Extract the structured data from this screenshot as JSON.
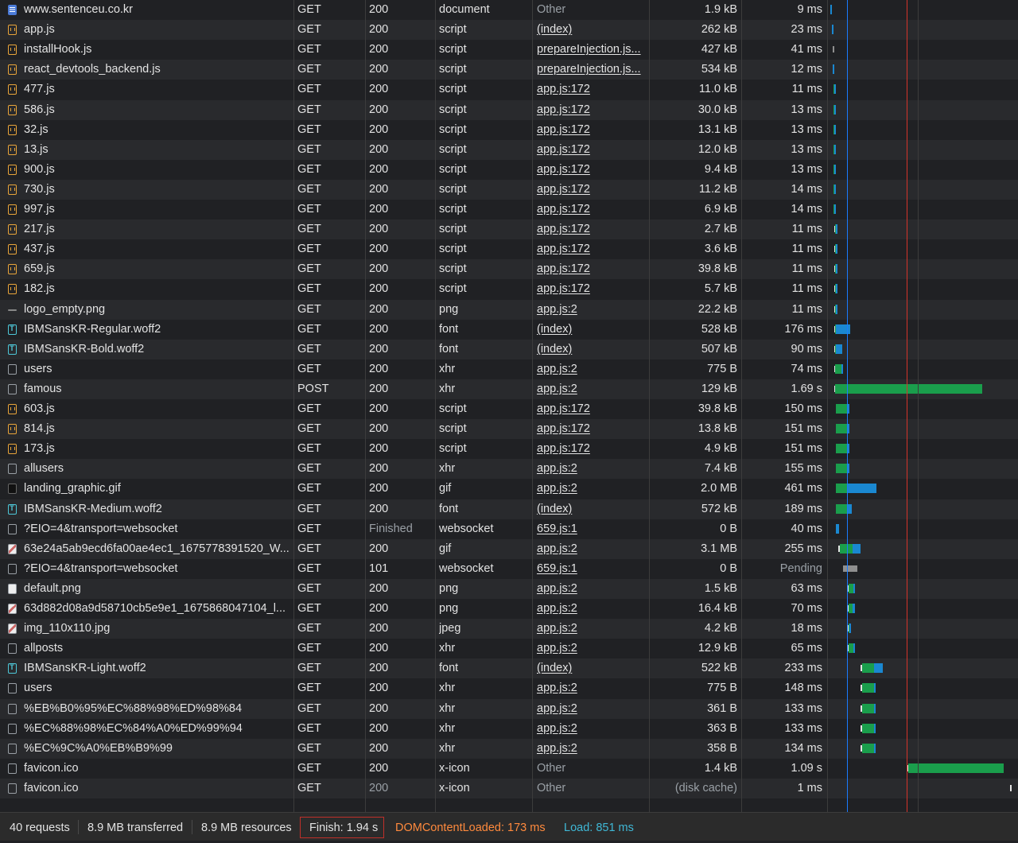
{
  "requests": [
    {
      "name": "www.sentenceu.co.kr",
      "icon": "document-icon",
      "method": "GET",
      "status": "200",
      "type": "document",
      "initiator": "Other",
      "size": "1.9 kB",
      "time": "9 ms"
    },
    {
      "name": "app.js",
      "icon": "script-icon",
      "method": "GET",
      "status": "200",
      "type": "script",
      "initiator": "(index)",
      "size": "262 kB",
      "time": "23 ms"
    },
    {
      "name": "installHook.js",
      "icon": "script-icon",
      "method": "GET",
      "status": "200",
      "type": "script",
      "initiator": "prepareInjection.js...",
      "size": "427 kB",
      "time": "41 ms"
    },
    {
      "name": "react_devtools_backend.js",
      "icon": "script-icon",
      "method": "GET",
      "status": "200",
      "type": "script",
      "initiator": "prepareInjection.js...",
      "size": "534 kB",
      "time": "12 ms"
    },
    {
      "name": "477.js",
      "icon": "script-icon",
      "method": "GET",
      "status": "200",
      "type": "script",
      "initiator": "app.js:172",
      "size": "11.0 kB",
      "time": "11 ms"
    },
    {
      "name": "586.js",
      "icon": "script-icon",
      "method": "GET",
      "status": "200",
      "type": "script",
      "initiator": "app.js:172",
      "size": "30.0 kB",
      "time": "13 ms"
    },
    {
      "name": "32.js",
      "icon": "script-icon",
      "method": "GET",
      "status": "200",
      "type": "script",
      "initiator": "app.js:172",
      "size": "13.1 kB",
      "time": "13 ms"
    },
    {
      "name": "13.js",
      "icon": "script-icon",
      "method": "GET",
      "status": "200",
      "type": "script",
      "initiator": "app.js:172",
      "size": "12.0 kB",
      "time": "13 ms"
    },
    {
      "name": "900.js",
      "icon": "script-icon",
      "method": "GET",
      "status": "200",
      "type": "script",
      "initiator": "app.js:172",
      "size": "9.4 kB",
      "time": "13 ms"
    },
    {
      "name": "730.js",
      "icon": "script-icon",
      "method": "GET",
      "status": "200",
      "type": "script",
      "initiator": "app.js:172",
      "size": "11.2 kB",
      "time": "14 ms"
    },
    {
      "name": "997.js",
      "icon": "script-icon",
      "method": "GET",
      "status": "200",
      "type": "script",
      "initiator": "app.js:172",
      "size": "6.9 kB",
      "time": "14 ms"
    },
    {
      "name": "217.js",
      "icon": "script-icon",
      "method": "GET",
      "status": "200",
      "type": "script",
      "initiator": "app.js:172",
      "size": "2.7 kB",
      "time": "11 ms"
    },
    {
      "name": "437.js",
      "icon": "script-icon",
      "method": "GET",
      "status": "200",
      "type": "script",
      "initiator": "app.js:172",
      "size": "3.6 kB",
      "time": "11 ms"
    },
    {
      "name": "659.js",
      "icon": "script-icon",
      "method": "GET",
      "status": "200",
      "type": "script",
      "initiator": "app.js:172",
      "size": "39.8 kB",
      "time": "11 ms"
    },
    {
      "name": "182.js",
      "icon": "script-icon",
      "method": "GET",
      "status": "200",
      "type": "script",
      "initiator": "app.js:172",
      "size": "5.7 kB",
      "time": "11 ms"
    },
    {
      "name": "logo_empty.png",
      "icon": "image-line-icon",
      "method": "GET",
      "status": "200",
      "type": "png",
      "initiator": "app.js:2",
      "size": "22.2 kB",
      "time": "11 ms"
    },
    {
      "name": "IBMSansKR-Regular.woff2",
      "icon": "font-icon",
      "method": "GET",
      "status": "200",
      "type": "font",
      "initiator": "(index)",
      "size": "528 kB",
      "time": "176 ms"
    },
    {
      "name": "IBMSansKR-Bold.woff2",
      "icon": "font-icon",
      "method": "GET",
      "status": "200",
      "type": "font",
      "initiator": "(index)",
      "size": "507 kB",
      "time": "90 ms"
    },
    {
      "name": "users",
      "icon": "blank-icon",
      "method": "GET",
      "status": "200",
      "type": "xhr",
      "initiator": "app.js:2",
      "size": "775 B",
      "time": "74 ms"
    },
    {
      "name": "famous",
      "icon": "blank-icon",
      "method": "POST",
      "status": "200",
      "type": "xhr",
      "initiator": "app.js:2",
      "size": "129 kB",
      "time": "1.69 s"
    },
    {
      "name": "603.js",
      "icon": "script-icon",
      "method": "GET",
      "status": "200",
      "type": "script",
      "initiator": "app.js:172",
      "size": "39.8 kB",
      "time": "150 ms"
    },
    {
      "name": "814.js",
      "icon": "script-icon",
      "method": "GET",
      "status": "200",
      "type": "script",
      "initiator": "app.js:172",
      "size": "13.8 kB",
      "time": "151 ms"
    },
    {
      "name": "173.js",
      "icon": "script-icon",
      "method": "GET",
      "status": "200",
      "type": "script",
      "initiator": "app.js:172",
      "size": "4.9 kB",
      "time": "151 ms"
    },
    {
      "name": "allusers",
      "icon": "blank-icon",
      "method": "GET",
      "status": "200",
      "type": "xhr",
      "initiator": "app.js:2",
      "size": "7.4 kB",
      "time": "155 ms"
    },
    {
      "name": "landing_graphic.gif",
      "icon": "image-dark-icon",
      "method": "GET",
      "status": "200",
      "type": "gif",
      "initiator": "app.js:2",
      "size": "2.0 MB",
      "time": "461 ms"
    },
    {
      "name": "IBMSansKR-Medium.woff2",
      "icon": "font-icon",
      "method": "GET",
      "status": "200",
      "type": "font",
      "initiator": "(index)",
      "size": "572 kB",
      "time": "189 ms"
    },
    {
      "name": "?EIO=4&transport=websocket",
      "icon": "blank-icon",
      "method": "GET",
      "status": "Finished",
      "type": "websocket",
      "initiator": "659.js:1",
      "size": "0 B",
      "time": "40 ms"
    },
    {
      "name": "63e24a5ab9ecd6fa00ae4ec1_1675778391520_W...",
      "icon": "image-pixel-icon",
      "method": "GET",
      "status": "200",
      "type": "gif",
      "initiator": "app.js:2",
      "size": "3.1 MB",
      "time": "255 ms"
    },
    {
      "name": "?EIO=4&transport=websocket",
      "icon": "blank-icon",
      "method": "GET",
      "status": "101",
      "type": "websocket",
      "initiator": "659.js:1",
      "size": "0 B",
      "time": "Pending"
    },
    {
      "name": "default.png",
      "icon": "image-icon",
      "method": "GET",
      "status": "200",
      "type": "png",
      "initiator": "app.js:2",
      "size": "1.5 kB",
      "time": "63 ms"
    },
    {
      "name": "63d882d08a9d58710cb5e9e1_1675868047104_l...",
      "icon": "image-pixel-icon",
      "method": "GET",
      "status": "200",
      "type": "png",
      "initiator": "app.js:2",
      "size": "16.4 kB",
      "time": "70 ms"
    },
    {
      "name": "img_110x110.jpg",
      "icon": "image-pixel-icon",
      "method": "GET",
      "status": "200",
      "type": "jpeg",
      "initiator": "app.js:2",
      "size": "4.2 kB",
      "time": "18 ms"
    },
    {
      "name": "allposts",
      "icon": "blank-icon",
      "method": "GET",
      "status": "200",
      "type": "xhr",
      "initiator": "app.js:2",
      "size": "12.9 kB",
      "time": "65 ms"
    },
    {
      "name": "IBMSansKR-Light.woff2",
      "icon": "font-icon",
      "method": "GET",
      "status": "200",
      "type": "font",
      "initiator": "(index)",
      "size": "522 kB",
      "time": "233 ms"
    },
    {
      "name": "users",
      "icon": "blank-icon",
      "method": "GET",
      "status": "200",
      "type": "xhr",
      "initiator": "app.js:2",
      "size": "775 B",
      "time": "148 ms"
    },
    {
      "name": "%EB%B0%95%EC%88%98%ED%98%84",
      "icon": "blank-icon",
      "method": "GET",
      "status": "200",
      "type": "xhr",
      "initiator": "app.js:2",
      "size": "361 B",
      "time": "133 ms"
    },
    {
      "name": "%EC%88%98%EC%84%A0%ED%99%94",
      "icon": "blank-icon",
      "method": "GET",
      "status": "200",
      "type": "xhr",
      "initiator": "app.js:2",
      "size": "363 B",
      "time": "133 ms"
    },
    {
      "name": "%EC%9C%A0%EB%B9%99",
      "icon": "blank-icon",
      "method": "GET",
      "status": "200",
      "type": "xhr",
      "initiator": "app.js:2",
      "size": "358 B",
      "time": "134 ms"
    },
    {
      "name": "favicon.ico",
      "icon": "blank-icon",
      "method": "GET",
      "status": "200",
      "type": "x-icon",
      "initiator": "Other",
      "size": "1.4 kB",
      "time": "1.09 s"
    },
    {
      "name": "favicon.ico",
      "icon": "blank-icon",
      "method": "GET",
      "status": "200",
      "type": "x-icon",
      "initiator": "Other",
      "size": "(disk cache)",
      "time": "1 ms"
    }
  ],
  "waterfall_timing_ms": [
    {
      "q": [
        0,
        4
      ],
      "w": null,
      "d": [
        4,
        9
      ]
    },
    {
      "q": [
        15,
        20
      ],
      "w": null,
      "d": [
        20,
        38
      ]
    },
    {
      "q": null,
      "w": [
        24,
        45
      ],
      "d": null,
      "gray": true
    },
    {
      "q": null,
      "w": null,
      "d": [
        28,
        40
      ]
    },
    {
      "q": [
        33,
        40
      ],
      "w": [
        40,
        46
      ],
      "d": [
        46,
        54
      ]
    },
    {
      "q": [
        33,
        40
      ],
      "w": [
        40,
        46
      ],
      "d": [
        46,
        54
      ]
    },
    {
      "q": [
        33,
        40
      ],
      "w": [
        40,
        46
      ],
      "d": [
        46,
        54
      ]
    },
    {
      "q": [
        33,
        40
      ],
      "w": [
        40,
        46
      ],
      "d": [
        46,
        54
      ]
    },
    {
      "q": [
        33,
        40
      ],
      "w": [
        40,
        46
      ],
      "d": [
        46,
        58
      ]
    },
    {
      "q": [
        33,
        40
      ],
      "w": [
        40,
        46
      ],
      "d": [
        46,
        58
      ]
    },
    {
      "q": [
        33,
        40
      ],
      "w": [
        40,
        46
      ],
      "d": [
        46,
        58
      ]
    },
    {
      "q": [
        50,
        56
      ],
      "w": [
        56,
        62
      ],
      "d": [
        62,
        70
      ]
    },
    {
      "q": [
        50,
        56
      ],
      "w": [
        56,
        62
      ],
      "d": [
        62,
        70
      ]
    },
    {
      "q": [
        50,
        56
      ],
      "w": [
        56,
        62
      ],
      "d": [
        62,
        70
      ]
    },
    {
      "q": [
        50,
        56
      ],
      "w": [
        56,
        62
      ],
      "d": [
        62,
        70
      ]
    },
    {
      "q": [
        50,
        56
      ],
      "w": [
        56,
        62
      ],
      "d": [
        62,
        70
      ]
    },
    {
      "q": [
        50,
        56
      ],
      "w": [
        56,
        62
      ],
      "d": [
        62,
        225
      ]
    },
    {
      "q": [
        50,
        56
      ],
      "w": [
        56,
        62
      ],
      "d": [
        62,
        140
      ]
    },
    {
      "q": [
        50,
        56
      ],
      "w": [
        56,
        130
      ],
      "d": [
        130,
        135
      ]
    },
    {
      "q": [
        50,
        56
      ],
      "w": [
        56,
        1745
      ],
      "d": null
    },
    {
      "q": [
        60,
        66
      ],
      "w": [
        66,
        205
      ],
      "d": [
        205,
        210
      ]
    },
    {
      "q": [
        60,
        66
      ],
      "w": [
        66,
        205
      ],
      "d": [
        205,
        210
      ]
    },
    {
      "q": [
        60,
        66
      ],
      "w": [
        66,
        205
      ],
      "d": [
        205,
        210
      ]
    },
    {
      "q": [
        60,
        66
      ],
      "w": [
        66,
        205
      ],
      "d": [
        205,
        210
      ]
    },
    {
      "q": [
        60,
        66
      ],
      "w": [
        66,
        205
      ],
      "d": [
        205,
        530
      ]
    },
    {
      "q": [
        60,
        66
      ],
      "w": [
        66,
        205
      ],
      "d": [
        205,
        245
      ]
    },
    {
      "q": [
        60,
        66
      ],
      "w": null,
      "d": [
        66,
        100
      ]
    },
    {
      "q": [
        95,
        110
      ],
      "w": [
        110,
        252
      ],
      "d": [
        252,
        350
      ]
    },
    {
      "q": null,
      "w": [
        150,
        310
      ],
      "d": null,
      "gray": true
    },
    {
      "q": [
        198,
        210
      ],
      "w": [
        210,
        265
      ],
      "d": [
        265,
        275
      ]
    },
    {
      "q": [
        198,
        210
      ],
      "w": [
        210,
        260
      ],
      "d": [
        260,
        285
      ]
    },
    {
      "q": [
        198,
        210
      ],
      "w": [
        210,
        220
      ],
      "d": [
        220,
        230
      ]
    },
    {
      "q": [
        198,
        210
      ],
      "w": [
        210,
        265
      ],
      "d": [
        265,
        275
      ]
    },
    {
      "q": [
        350,
        365
      ],
      "w": [
        365,
        500
      ],
      "d": [
        500,
        600
      ]
    },
    {
      "q": [
        350,
        365
      ],
      "w": [
        365,
        500
      ],
      "d": [
        500,
        510
      ]
    },
    {
      "q": [
        350,
        365
      ],
      "w": [
        365,
        500
      ],
      "d": [
        500,
        510
      ]
    },
    {
      "q": [
        350,
        365
      ],
      "w": [
        365,
        500
      ],
      "d": [
        500,
        510
      ]
    },
    {
      "q": [
        350,
        365
      ],
      "w": [
        365,
        500
      ],
      "d": [
        500,
        510
      ]
    },
    {
      "q": [
        880,
        895
      ],
      "w": [
        895,
        1990
      ],
      "d": null
    },
    {
      "q": [
        2060,
        2066
      ],
      "w": null,
      "d": null
    }
  ],
  "markers": {
    "dom_content_loaded_color": "#1a7cff",
    "load_color": "#d6332a"
  },
  "statusbar": {
    "requests": "40 requests",
    "transferred": "8.9 MB transferred",
    "resources": "8.9 MB resources",
    "finish": "Finish: 1.94 s",
    "dom_content_loaded": "DOMContentLoaded: 173 ms",
    "load": "Load: 851 ms",
    "dcl_color": "#ff8a3d",
    "load_color": "#3fb8d6"
  }
}
